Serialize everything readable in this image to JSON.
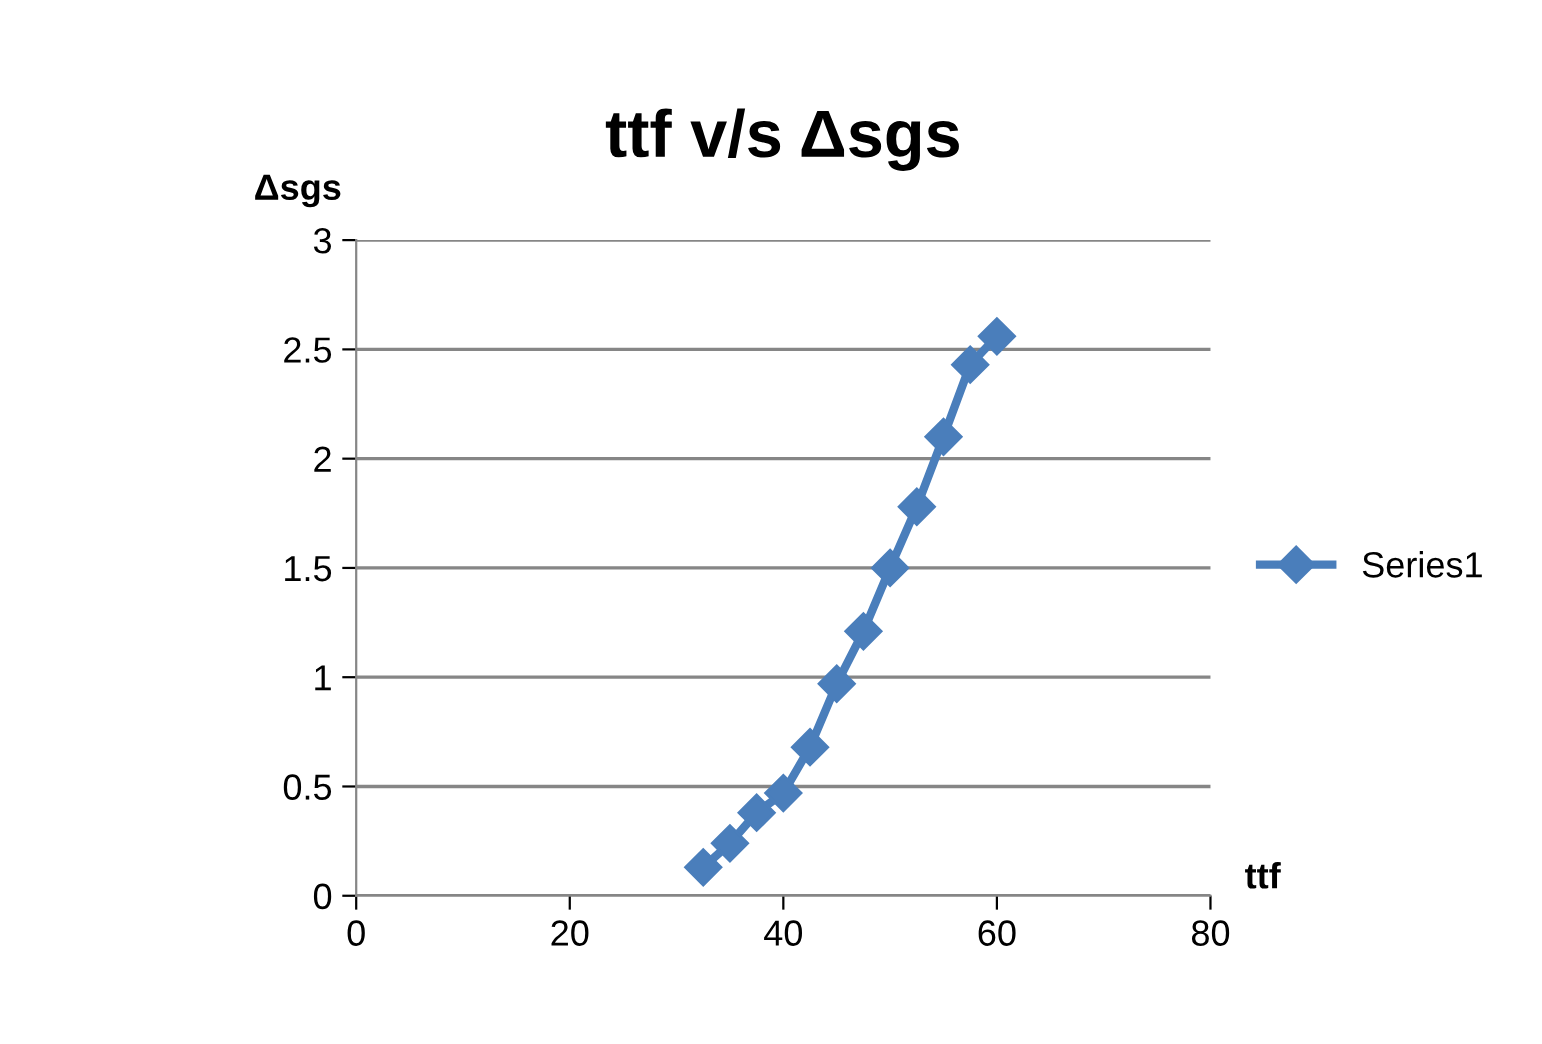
{
  "chart_data": {
    "type": "line",
    "title": "ttf v/s Δsgs",
    "xlabel": "ttf",
    "ylabel": "Δsgs",
    "x": [
      32.5,
      35,
      37.5,
      40,
      42.5,
      45,
      47.5,
      50,
      52.5,
      55,
      57.5,
      60
    ],
    "series": [
      {
        "name": "Series1",
        "color": "#4a7ebb",
        "values": [
          0.13,
          0.24,
          0.38,
          0.47,
          0.68,
          0.97,
          1.21,
          1.5,
          1.78,
          2.1,
          2.43,
          2.56
        ]
      }
    ],
    "xlim": [
      0,
      80
    ],
    "xticks": [
      0,
      20,
      40,
      60,
      80
    ],
    "ylim": [
      0,
      3
    ],
    "yticks": [
      0,
      0.5,
      1,
      1.5,
      2,
      2.5,
      3
    ],
    "grid": "y",
    "legend": "right",
    "marker": "diamond",
    "line_style": "solid"
  }
}
